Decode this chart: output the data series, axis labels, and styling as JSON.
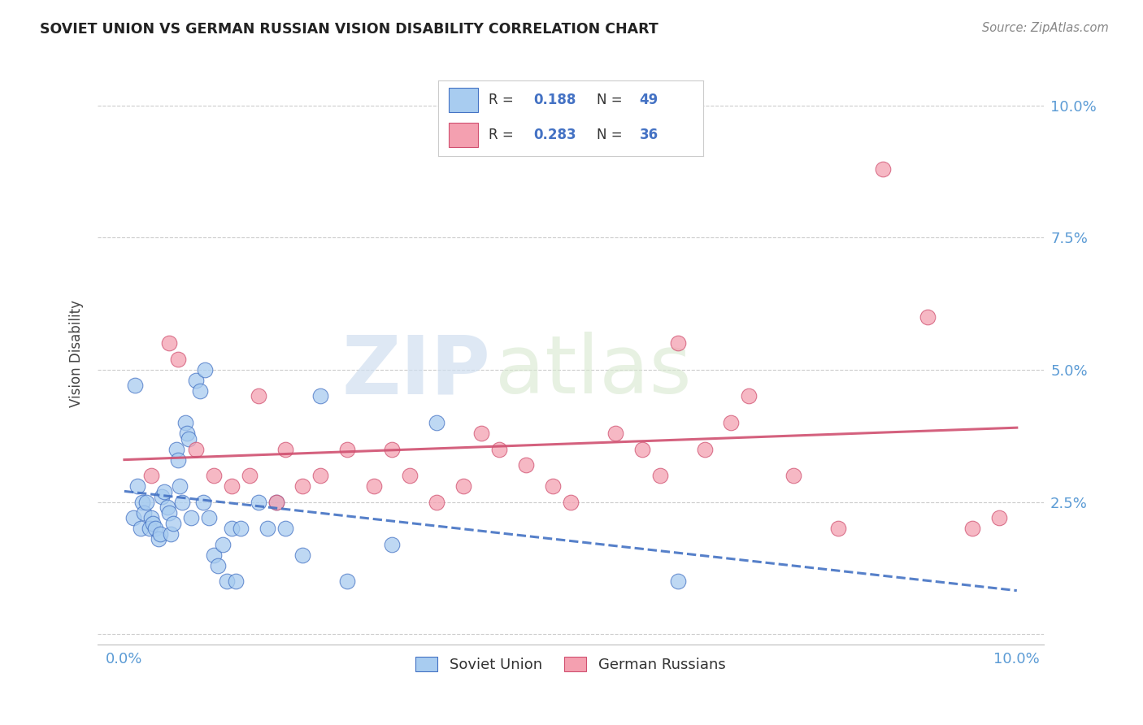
{
  "title": "SOVIET UNION VS GERMAN RUSSIAN VISION DISABILITY CORRELATION CHART",
  "source": "Source: ZipAtlas.com",
  "ylabel": "Vision Disability",
  "xlim": [
    -0.3,
    10.3
  ],
  "ylim": [
    -0.2,
    10.8
  ],
  "xticks": [
    0,
    2.5,
    5.0,
    7.5,
    10.0
  ],
  "yticks": [
    0,
    2.5,
    5.0,
    7.5,
    10.0
  ],
  "xticklabels": [
    "0.0%",
    "",
    "",
    "",
    "10.0%"
  ],
  "yticklabels": [
    "",
    "2.5%",
    "5.0%",
    "7.5%",
    "10.0%"
  ],
  "soviet_R": "0.188",
  "soviet_N": "49",
  "german_R": "0.283",
  "german_N": "36",
  "soviet_color": "#A8CCF0",
  "german_color": "#F4A0B0",
  "soviet_line_color": "#4472C4",
  "german_line_color": "#D05070",
  "tick_color": "#5B9BD5",
  "background_color": "#FFFFFF",
  "watermark_zip": "ZIP",
  "watermark_atlas": "atlas",
  "soviet_x": [
    0.1,
    0.15,
    0.2,
    0.18,
    0.22,
    0.25,
    0.3,
    0.28,
    0.32,
    0.35,
    0.38,
    0.4,
    0.42,
    0.45,
    0.48,
    0.5,
    0.52,
    0.55,
    0.58,
    0.6,
    0.62,
    0.65,
    0.68,
    0.7,
    0.72,
    0.75,
    0.8,
    0.85,
    0.88,
    0.9,
    0.95,
    1.0,
    1.05,
    1.1,
    1.15,
    1.2,
    1.25,
    1.3,
    1.5,
    1.6,
    1.7,
    1.8,
    2.0,
    2.2,
    2.5,
    3.0,
    3.5,
    6.2,
    0.12
  ],
  "soviet_y": [
    2.2,
    2.8,
    2.5,
    2.0,
    2.3,
    2.5,
    2.2,
    2.0,
    2.1,
    2.0,
    1.8,
    1.9,
    2.6,
    2.7,
    2.4,
    2.3,
    1.9,
    2.1,
    3.5,
    3.3,
    2.8,
    2.5,
    4.0,
    3.8,
    3.7,
    2.2,
    4.8,
    4.6,
    2.5,
    5.0,
    2.2,
    1.5,
    1.3,
    1.7,
    1.0,
    2.0,
    1.0,
    2.0,
    2.5,
    2.0,
    2.5,
    2.0,
    1.5,
    4.5,
    1.0,
    1.7,
    4.0,
    1.0,
    4.7
  ],
  "german_x": [
    0.3,
    0.5,
    0.6,
    0.8,
    1.0,
    1.2,
    1.4,
    1.5,
    1.7,
    1.8,
    2.0,
    2.2,
    2.5,
    2.8,
    3.0,
    3.2,
    3.5,
    3.8,
    4.0,
    4.2,
    4.5,
    4.8,
    5.0,
    5.5,
    5.8,
    6.0,
    6.2,
    6.5,
    6.8,
    7.0,
    7.5,
    8.0,
    8.5,
    9.0,
    9.5,
    9.8
  ],
  "german_y": [
    3.0,
    5.5,
    5.2,
    3.5,
    3.0,
    2.8,
    3.0,
    4.5,
    2.5,
    3.5,
    2.8,
    3.0,
    3.5,
    2.8,
    3.5,
    3.0,
    2.5,
    2.8,
    3.8,
    3.5,
    3.2,
    2.8,
    2.5,
    3.8,
    3.5,
    3.0,
    5.5,
    3.5,
    4.0,
    4.5,
    3.0,
    2.0,
    8.8,
    6.0,
    2.0,
    2.2
  ]
}
